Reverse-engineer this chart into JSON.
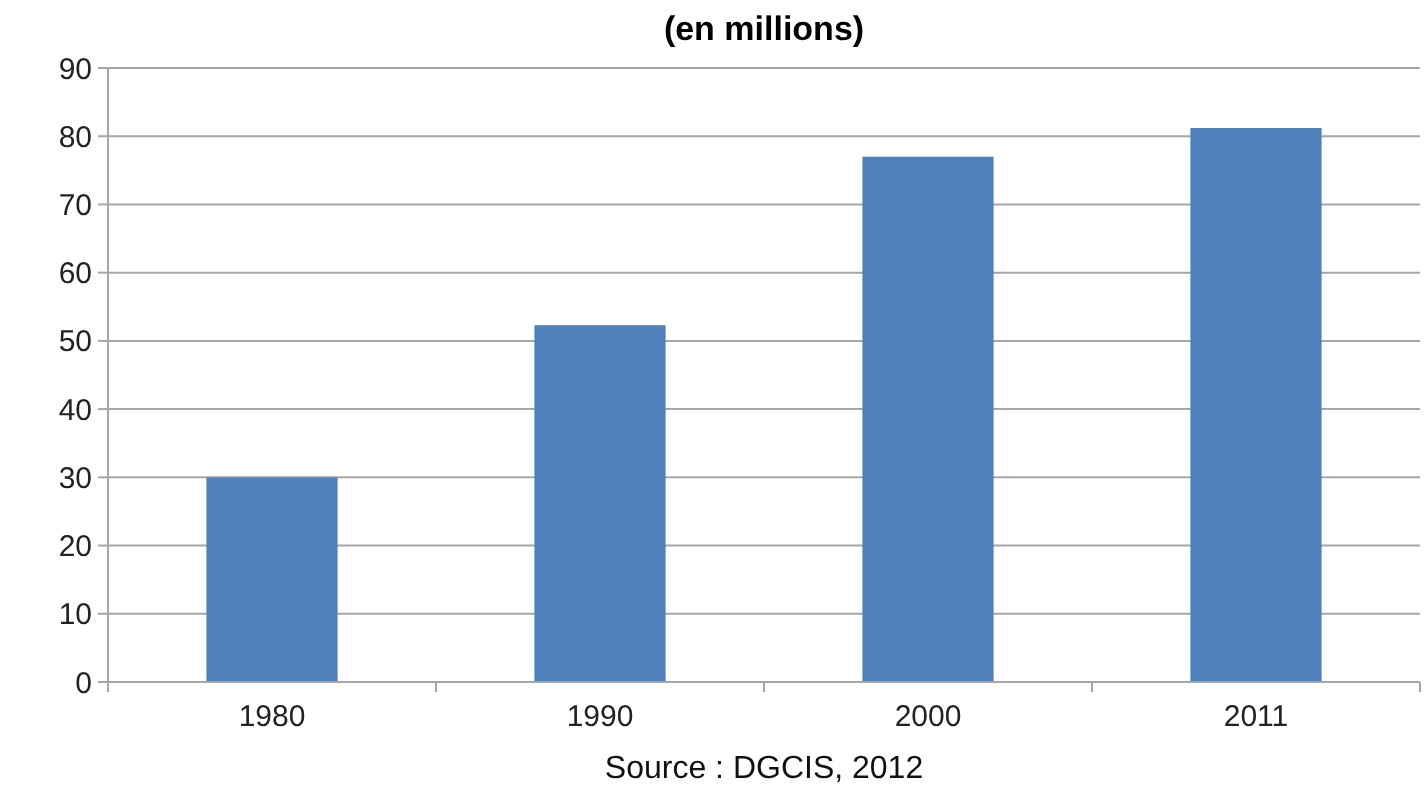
{
  "chart_data": {
    "type": "bar",
    "title": "(en millions)",
    "categories": [
      "1980",
      "1990",
      "2000",
      "2011"
    ],
    "values": [
      30,
      52.3,
      77,
      81.2
    ],
    "color": "#4f81bd",
    "ylim": [
      0,
      90
    ],
    "yticks": [
      0,
      10,
      20,
      30,
      40,
      50,
      60,
      70,
      80,
      90
    ],
    "grid": "y",
    "annotations": [
      "Source : DGCIS, 2012"
    ]
  }
}
